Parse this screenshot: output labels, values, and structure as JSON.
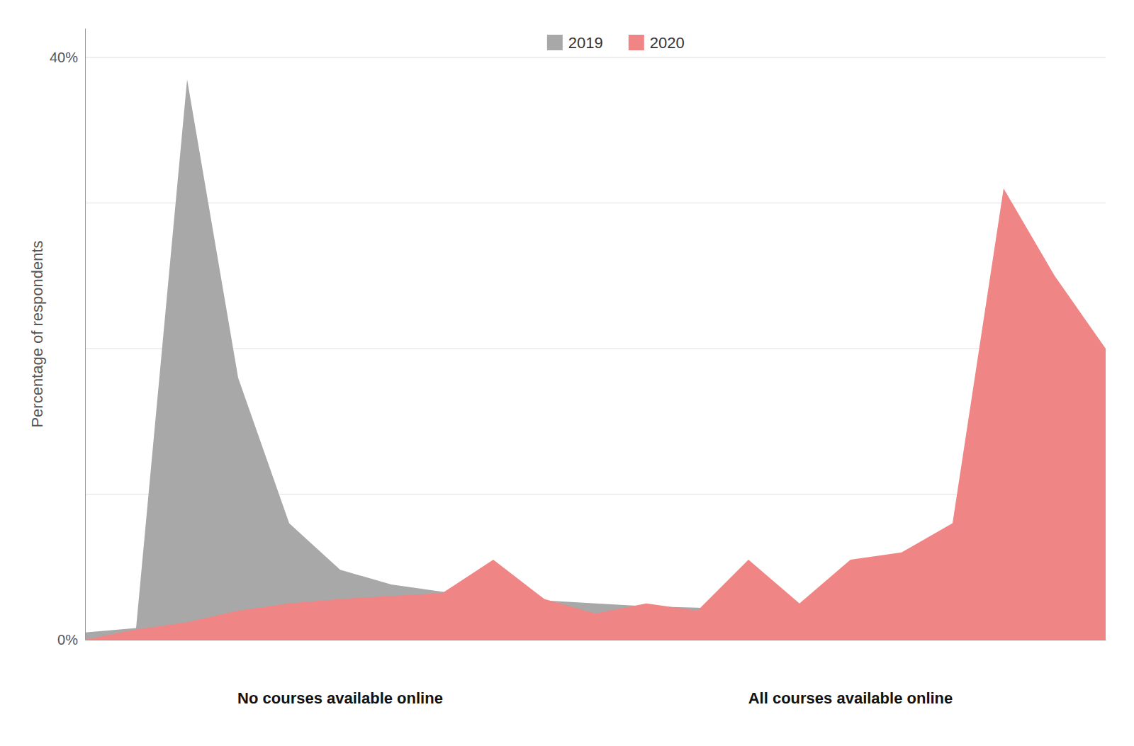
{
  "chart_data": {
    "type": "area",
    "y_label": "Percentage of respondents",
    "annotations": [
      "No courses available online",
      "All courses available online"
    ],
    "x": [
      0,
      1,
      2,
      3,
      4,
      5,
      6,
      7,
      8,
      9,
      10,
      11,
      12,
      13,
      14,
      15,
      16,
      17,
      18,
      19,
      20
    ],
    "series": [
      {
        "name": "2019",
        "color": "#a8a8a8",
        "values": [
          0.005,
          0.008,
          0.385,
          0.18,
          0.08,
          0.048,
          0.038,
          0.033,
          0.03,
          0.027,
          0.025,
          0.023,
          0.022,
          0.02,
          0.018,
          0.016,
          0.015,
          0.013,
          0.012,
          0.011,
          0.01
        ]
      },
      {
        "name": "2020",
        "color": "#f08585",
        "values": [
          0.0,
          0.007,
          0.012,
          0.02,
          0.025,
          0.028,
          0.03,
          0.032,
          0.055,
          0.028,
          0.018,
          0.025,
          0.02,
          0.055,
          0.025,
          0.055,
          0.06,
          0.08,
          0.31,
          0.25,
          0.2
        ]
      }
    ],
    "xlim": [
      0,
      20
    ],
    "xticks": [],
    "ylim": [
      0,
      0.42
    ],
    "yticks": [
      {
        "value": 0.0,
        "label": "0%"
      },
      {
        "value": 0.1,
        "label": ""
      },
      {
        "value": 0.2,
        "label": ""
      },
      {
        "value": 0.3,
        "label": ""
      },
      {
        "value": 0.4,
        "label": "40%"
      }
    ],
    "grid": true,
    "legend": "top",
    "tick_labels": "y"
  }
}
